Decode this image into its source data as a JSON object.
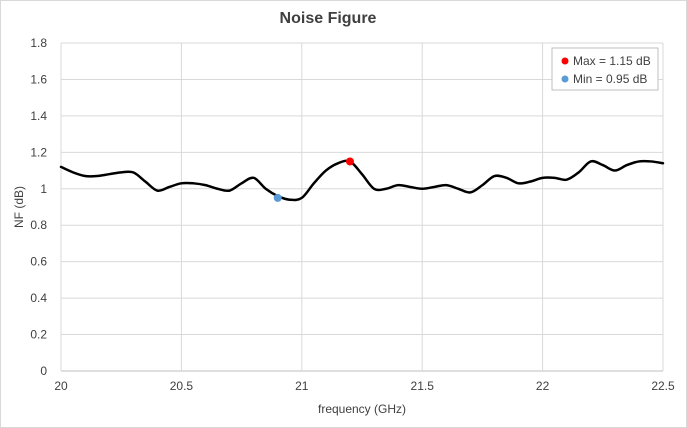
{
  "chart_data": {
    "type": "line",
    "title": "Noise Figure",
    "xlabel": "frequency  (GHz)",
    "ylabel": "NF (dB)",
    "xlim": [
      20,
      22.5
    ],
    "ylim": [
      0,
      1.8
    ],
    "x_ticks": [
      20,
      20.5,
      21,
      21.5,
      22,
      22.5
    ],
    "x_tick_labels": [
      "20",
      "20.5",
      "21",
      "21.5",
      "22",
      "22.5"
    ],
    "y_ticks": [
      0,
      0.2,
      0.4,
      0.6,
      0.8,
      1,
      1.2,
      1.4,
      1.6,
      1.8
    ],
    "y_tick_labels": [
      "0",
      "0.2",
      "0.4",
      "0.6",
      "0.8",
      "1",
      "1.2",
      "1.4",
      "1.6",
      "1.8"
    ],
    "grid": true,
    "legend_position": "top-right",
    "series": [
      {
        "color": "#000000",
        "x": [
          20.0,
          20.05,
          20.1,
          20.15,
          20.2,
          20.25,
          20.3,
          20.35,
          20.4,
          20.45,
          20.5,
          20.55,
          20.6,
          20.65,
          20.7,
          20.75,
          20.8,
          20.85,
          20.9,
          20.95,
          21.0,
          21.05,
          21.1,
          21.15,
          21.2,
          21.25,
          21.3,
          21.35,
          21.4,
          21.45,
          21.5,
          21.55,
          21.6,
          21.65,
          21.7,
          21.75,
          21.8,
          21.85,
          21.9,
          21.95,
          22.0,
          22.05,
          22.1,
          22.15,
          22.2,
          22.25,
          22.3,
          22.35,
          22.4,
          22.45,
          22.5
        ],
        "y": [
          1.12,
          1.09,
          1.07,
          1.07,
          1.08,
          1.09,
          1.09,
          1.04,
          0.99,
          1.01,
          1.03,
          1.03,
          1.02,
          1.0,
          0.99,
          1.03,
          1.06,
          1.0,
          0.96,
          0.94,
          0.95,
          1.03,
          1.1,
          1.14,
          1.15,
          1.08,
          1.0,
          1.0,
          1.02,
          1.01,
          1.0,
          1.01,
          1.02,
          1.0,
          0.98,
          1.02,
          1.07,
          1.06,
          1.03,
          1.04,
          1.06,
          1.06,
          1.05,
          1.09,
          1.15,
          1.13,
          1.1,
          1.13,
          1.15,
          1.15,
          1.14
        ]
      }
    ],
    "markers": [
      {
        "label": "Max = 1.15 dB",
        "x": 21.2,
        "y": 1.15,
        "color": "#ff0000"
      },
      {
        "label": "Min = 0.95 dB",
        "x": 20.9,
        "y": 0.95,
        "color": "#5b9bd5"
      }
    ]
  }
}
